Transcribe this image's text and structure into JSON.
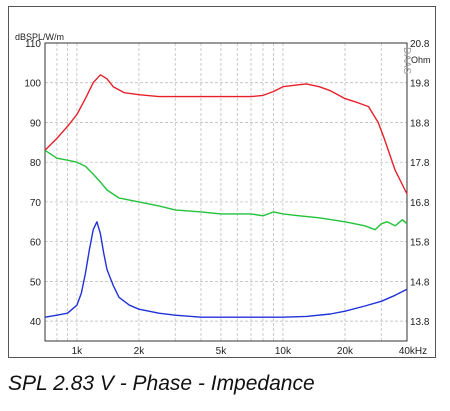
{
  "caption": "SPL 2.83 V - Phase - Impedance",
  "chart_data": {
    "type": "line",
    "x_scale": "log",
    "xlim": [
      700,
      40000
    ],
    "x_ticks": [
      1000,
      2000,
      5000,
      10000,
      20000,
      40000
    ],
    "x_tick_labels": [
      "1k",
      "2k",
      "5k",
      "10k",
      "20k",
      "40kHz"
    ],
    "left_axis": {
      "unit_label": "dBSPL/W/m",
      "ylim": [
        35,
        110
      ],
      "ticks": [
        40,
        50,
        60,
        70,
        80,
        90,
        100,
        110
      ],
      "tick_labels": [
        "40",
        "50",
        "60",
        "70",
        "80",
        "90",
        "100",
        "110"
      ]
    },
    "right_axis": {
      "unit_label": "Ohm",
      "ylim": [
        13.3,
        20.8
      ],
      "ticks": [
        13.8,
        14.8,
        15.8,
        16.8,
        17.8,
        18.8,
        19.8,
        20.8
      ],
      "tick_labels": [
        "13.8",
        "14.8",
        "15.8",
        "16.8",
        "17.8",
        "18.8",
        "19.8",
        "20.8"
      ]
    },
    "watermark": "DAAS",
    "grid": true,
    "series": [
      {
        "color": "#e8202a",
        "axis": "left",
        "points": [
          [
            700,
            83
          ],
          [
            800,
            86
          ],
          [
            900,
            89
          ],
          [
            1000,
            92
          ],
          [
            1100,
            96
          ],
          [
            1200,
            100
          ],
          [
            1300,
            102
          ],
          [
            1400,
            101
          ],
          [
            1500,
            99
          ],
          [
            1700,
            97.5
          ],
          [
            2000,
            97
          ],
          [
            2500,
            96.5
          ],
          [
            3000,
            96.5
          ],
          [
            4000,
            96.5
          ],
          [
            5000,
            96.5
          ],
          [
            6000,
            96.5
          ],
          [
            7000,
            96.5
          ],
          [
            8000,
            96.8
          ],
          [
            9000,
            97.8
          ],
          [
            10000,
            99
          ],
          [
            12000,
            99.5
          ],
          [
            13000,
            99.7
          ],
          [
            15000,
            99
          ],
          [
            17000,
            98
          ],
          [
            20000,
            96
          ],
          [
            23000,
            95
          ],
          [
            26000,
            94
          ],
          [
            29000,
            90
          ],
          [
            31000,
            86
          ],
          [
            35000,
            78
          ],
          [
            40000,
            72
          ]
        ]
      },
      {
        "color": "#22c23a",
        "axis": "left",
        "points": [
          [
            700,
            83
          ],
          [
            800,
            81
          ],
          [
            900,
            80.5
          ],
          [
            1000,
            80
          ],
          [
            1100,
            79
          ],
          [
            1200,
            77
          ],
          [
            1300,
            75
          ],
          [
            1400,
            73
          ],
          [
            1600,
            71
          ],
          [
            2000,
            70
          ],
          [
            2500,
            69
          ],
          [
            3000,
            68
          ],
          [
            4000,
            67.5
          ],
          [
            5000,
            67
          ],
          [
            6000,
            67
          ],
          [
            7000,
            67
          ],
          [
            8000,
            66.5
          ],
          [
            9000,
            67.5
          ],
          [
            10000,
            67
          ],
          [
            12000,
            66.5
          ],
          [
            15000,
            66
          ],
          [
            20000,
            65
          ],
          [
            25000,
            64
          ],
          [
            28000,
            63
          ],
          [
            30000,
            64.5
          ],
          [
            32000,
            65
          ],
          [
            35000,
            64
          ],
          [
            38000,
            65.5
          ],
          [
            40000,
            64.5
          ]
        ]
      },
      {
        "color": "#2032d8",
        "axis": "left",
        "points": [
          [
            700,
            41
          ],
          [
            800,
            41.5
          ],
          [
            900,
            42
          ],
          [
            1000,
            44
          ],
          [
            1050,
            47
          ],
          [
            1100,
            52
          ],
          [
            1150,
            58
          ],
          [
            1200,
            63
          ],
          [
            1250,
            65
          ],
          [
            1300,
            62
          ],
          [
            1350,
            57
          ],
          [
            1400,
            53
          ],
          [
            1500,
            49
          ],
          [
            1600,
            46
          ],
          [
            1800,
            44
          ],
          [
            2000,
            43
          ],
          [
            2500,
            42
          ],
          [
            3000,
            41.5
          ],
          [
            4000,
            41
          ],
          [
            6000,
            41
          ],
          [
            8000,
            41
          ],
          [
            10000,
            41
          ],
          [
            13000,
            41.2
          ],
          [
            17000,
            41.8
          ],
          [
            20000,
            42.5
          ],
          [
            25000,
            43.8
          ],
          [
            30000,
            45
          ],
          [
            35000,
            46.5
          ],
          [
            40000,
            48
          ]
        ]
      }
    ]
  }
}
